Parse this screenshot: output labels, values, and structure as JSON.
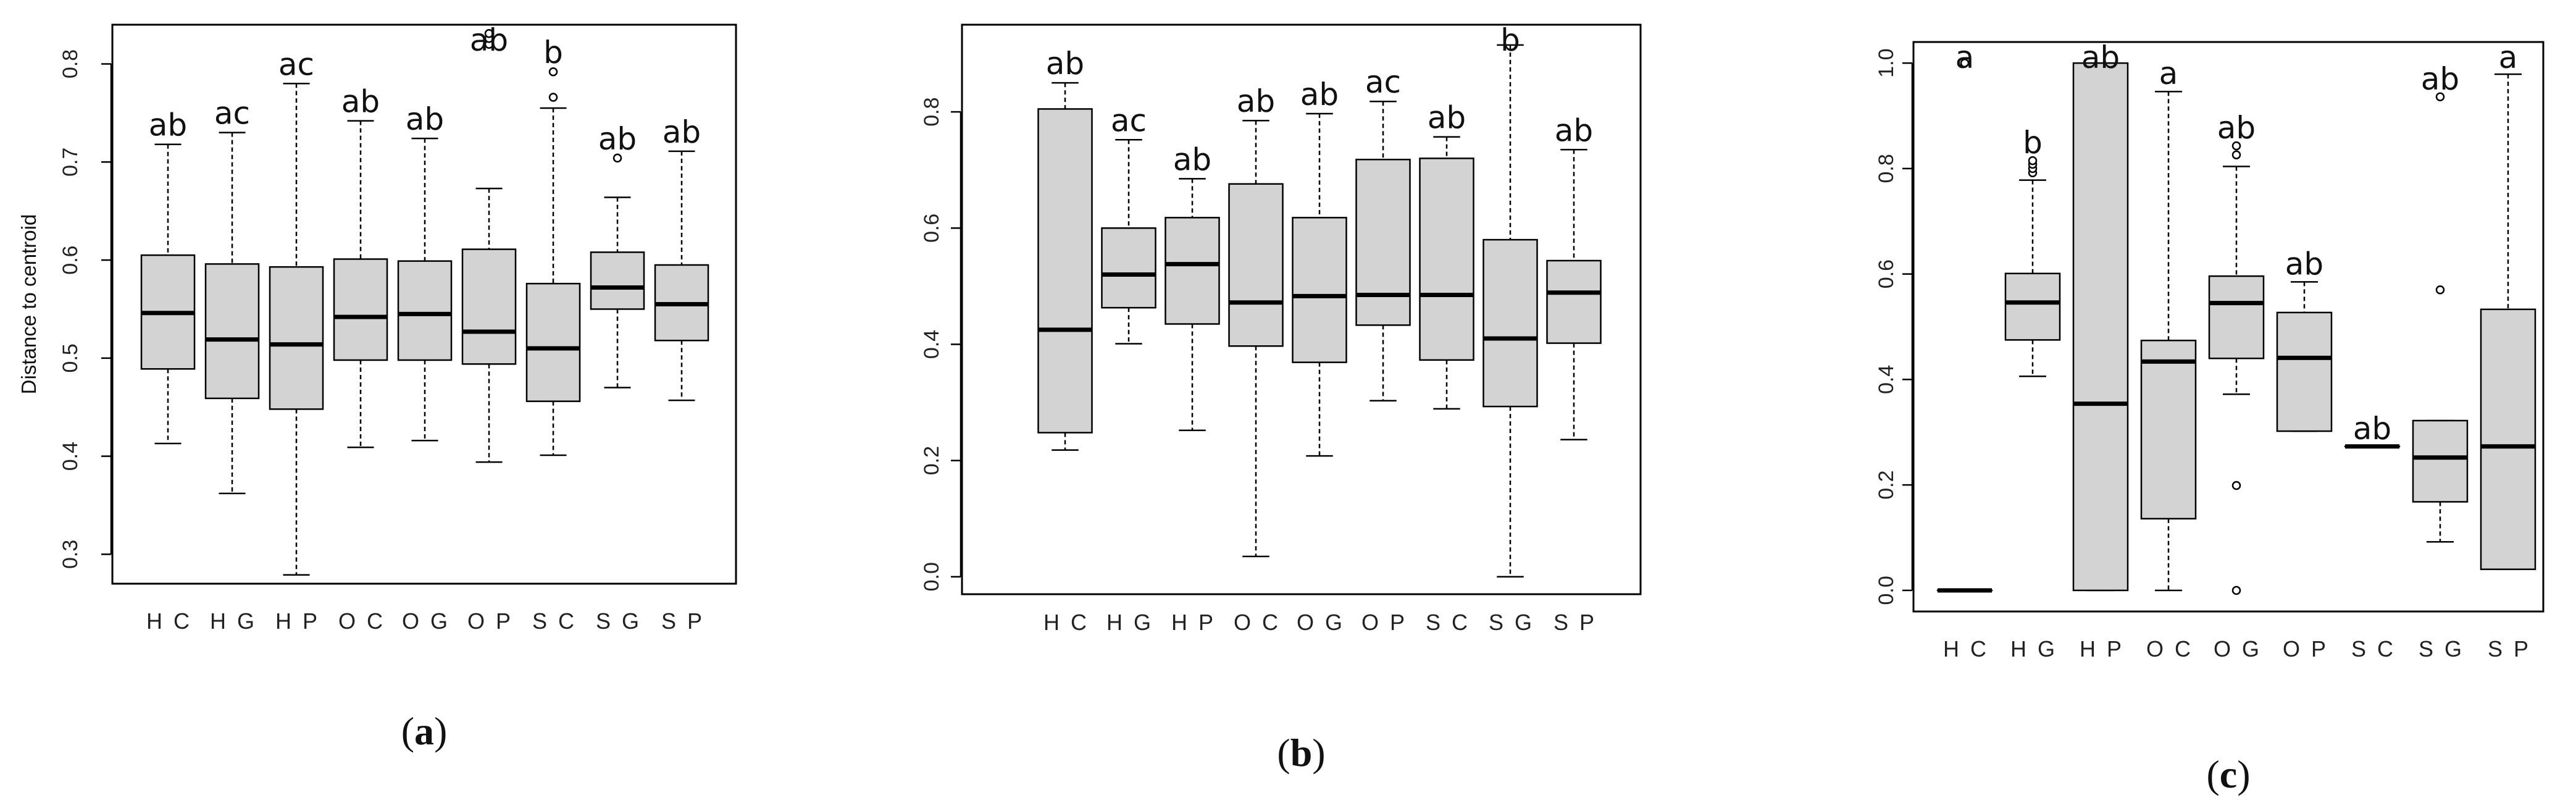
{
  "chart_data": [
    {
      "type": "box",
      "panel_label": "a",
      "title": "",
      "ylabel": "Distance to centroid",
      "xlabel": "",
      "ylim": [
        0.27,
        0.84
      ],
      "yticks": [
        0.3,
        0.4,
        0.5,
        0.6,
        0.7,
        0.8
      ],
      "categories": [
        "HC",
        "HG",
        "HP",
        "OC",
        "OG",
        "OP",
        "SC",
        "SG",
        "SP"
      ],
      "boxes": [
        {
          "whisker_low": 0.413,
          "q1": 0.489,
          "median": 0.546,
          "q3": 0.605,
          "whisker_high": 0.718,
          "outliers": [],
          "letter": "ab"
        },
        {
          "whisker_low": 0.362,
          "q1": 0.459,
          "median": 0.519,
          "q3": 0.596,
          "whisker_high": 0.73,
          "outliers": [],
          "letter": "ac"
        },
        {
          "whisker_low": 0.279,
          "q1": 0.448,
          "median": 0.514,
          "q3": 0.593,
          "whisker_high": 0.78,
          "outliers": [],
          "letter": "ac"
        },
        {
          "whisker_low": 0.409,
          "q1": 0.498,
          "median": 0.542,
          "q3": 0.601,
          "whisker_high": 0.742,
          "outliers": [],
          "letter": "ab"
        },
        {
          "whisker_low": 0.416,
          "q1": 0.498,
          "median": 0.545,
          "q3": 0.599,
          "whisker_high": 0.724,
          "outliers": [],
          "letter": "ab"
        },
        {
          "whisker_low": 0.394,
          "q1": 0.494,
          "median": 0.527,
          "q3": 0.611,
          "whisker_high": 0.673,
          "outliers": [
            0.82,
            0.826,
            0.831
          ],
          "letter": "ab"
        },
        {
          "whisker_low": 0.401,
          "q1": 0.456,
          "median": 0.51,
          "q3": 0.576,
          "whisker_high": 0.755,
          "outliers": [
            0.766,
            0.792
          ],
          "letter": "b"
        },
        {
          "whisker_low": 0.47,
          "q1": 0.55,
          "median": 0.572,
          "q3": 0.608,
          "whisker_high": 0.664,
          "outliers": [
            0.704
          ],
          "letter": "ab"
        },
        {
          "whisker_low": 0.457,
          "q1": 0.518,
          "median": 0.555,
          "q3": 0.595,
          "whisker_high": 0.711,
          "outliers": [],
          "letter": "ab"
        }
      ]
    },
    {
      "type": "box",
      "panel_label": "b",
      "title": "",
      "ylabel": "",
      "xlabel": "",
      "ylim": [
        -0.03,
        0.95
      ],
      "yticks": [
        0.0,
        0.2,
        0.4,
        0.6,
        0.8
      ],
      "categories": [
        "HC",
        "HG",
        "HP",
        "OC",
        "OG",
        "OP",
        "SC",
        "SG",
        "SP"
      ],
      "boxes": [
        {
          "whisker_low": 0.218,
          "q1": 0.248,
          "median": 0.425,
          "q3": 0.805,
          "whisker_high": 0.85,
          "outliers": [],
          "letter": "ab"
        },
        {
          "whisker_low": 0.401,
          "q1": 0.463,
          "median": 0.52,
          "q3": 0.6,
          "whisker_high": 0.752,
          "outliers": [],
          "letter": "ac"
        },
        {
          "whisker_low": 0.252,
          "q1": 0.435,
          "median": 0.538,
          "q3": 0.618,
          "whisker_high": 0.685,
          "outliers": [],
          "letter": "ab"
        },
        {
          "whisker_low": 0.035,
          "q1": 0.397,
          "median": 0.472,
          "q3": 0.676,
          "whisker_high": 0.785,
          "outliers": [],
          "letter": "ab"
        },
        {
          "whisker_low": 0.208,
          "q1": 0.369,
          "median": 0.483,
          "q3": 0.618,
          "whisker_high": 0.797,
          "outliers": [],
          "letter": "ab"
        },
        {
          "whisker_low": 0.303,
          "q1": 0.433,
          "median": 0.485,
          "q3": 0.718,
          "whisker_high": 0.818,
          "outliers": [],
          "letter": "ac"
        },
        {
          "whisker_low": 0.289,
          "q1": 0.373,
          "median": 0.485,
          "q3": 0.72,
          "whisker_high": 0.757,
          "outliers": [],
          "letter": "ab"
        },
        {
          "whisker_low": 0.0,
          "q1": 0.293,
          "median": 0.41,
          "q3": 0.58,
          "whisker_high": 0.915,
          "outliers": [],
          "letter": "b"
        },
        {
          "whisker_low": 0.236,
          "q1": 0.402,
          "median": 0.489,
          "q3": 0.544,
          "whisker_high": 0.735,
          "outliers": [],
          "letter": "ab"
        }
      ]
    },
    {
      "type": "box",
      "panel_label": "c",
      "title": "",
      "ylabel": "",
      "xlabel": "",
      "ylim": [
        -0.04,
        1.04
      ],
      "yticks": [
        0.0,
        0.2,
        0.4,
        0.6,
        0.8,
        1.0
      ],
      "categories": [
        "HC",
        "HG",
        "HP",
        "OC",
        "OG",
        "OP",
        "SC",
        "SG",
        "SP"
      ],
      "boxes": [
        {
          "whisker_low": 0.0,
          "q1": 0.0,
          "median": 0.0,
          "q3": 0.0,
          "whisker_high": 0.0,
          "outliers": [
            1.0
          ],
          "letter": "a"
        },
        {
          "whisker_low": 0.406,
          "q1": 0.475,
          "median": 0.546,
          "q3": 0.601,
          "whisker_high": 0.778,
          "outliers": [
            0.792,
            0.8,
            0.808,
            0.815
          ],
          "letter": "b"
        },
        {
          "whisker_low": 0.0,
          "q1": 0.0,
          "median": 0.354,
          "q3": 1.0,
          "whisker_high": 1.0,
          "outliers": [],
          "letter": "ab"
        },
        {
          "whisker_low": 0.0,
          "q1": 0.136,
          "median": 0.434,
          "q3": 0.474,
          "whisker_high": 0.946,
          "outliers": [],
          "letter": "a"
        },
        {
          "whisker_low": 0.372,
          "q1": 0.44,
          "median": 0.545,
          "q3": 0.596,
          "whisker_high": 0.804,
          "outliers": [
            0.0,
            0.199,
            0.826,
            0.843
          ],
          "letter": "ab"
        },
        {
          "whisker_low": 0.302,
          "q1": 0.302,
          "median": 0.441,
          "q3": 0.527,
          "whisker_high": 0.585,
          "outliers": [],
          "letter": "ab"
        },
        {
          "whisker_low": 0.273,
          "q1": 0.273,
          "median": 0.273,
          "q3": 0.273,
          "whisker_high": 0.273,
          "outliers": [],
          "letter": "ab"
        },
        {
          "whisker_low": 0.092,
          "q1": 0.168,
          "median": 0.252,
          "q3": 0.322,
          "whisker_high": 0.322,
          "outliers": [
            0.57,
            0.936
          ],
          "letter": "ab"
        },
        {
          "whisker_low": 0.04,
          "q1": 0.04,
          "median": 0.273,
          "q3": 0.533,
          "whisker_high": 0.979,
          "outliers": [],
          "letter": "a"
        }
      ]
    }
  ]
}
